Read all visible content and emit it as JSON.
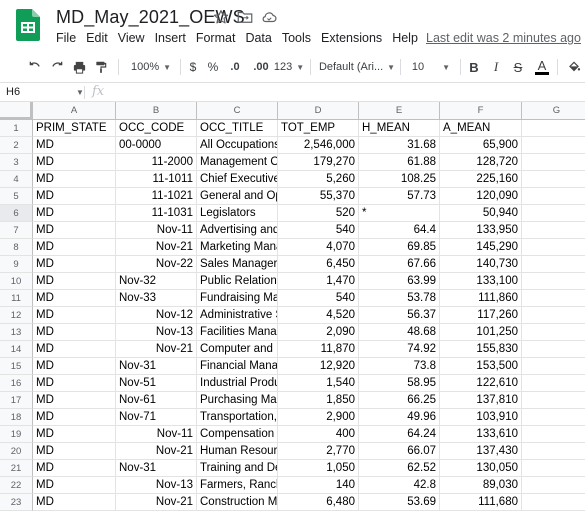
{
  "app": {
    "doc_title": "MD_May_2021_OEWS",
    "last_edit": "Last edit was 2 minutes ago",
    "brand_color": "#0f9d58"
  },
  "menu": [
    "File",
    "Edit",
    "View",
    "Insert",
    "Format",
    "Data",
    "Tools",
    "Extensions",
    "Help"
  ],
  "toolbar": {
    "zoom": "100%",
    "currency": "$",
    "percent": "%",
    "decrease_decimal": ".0",
    "increase_decimal": ".00",
    "more_formats": "123",
    "font": "Default (Ari...",
    "font_size": "10",
    "bold": "B",
    "italic": "I",
    "strike": "S",
    "text_color": "A",
    "text_color_value": "#000000"
  },
  "formula_bar": {
    "name_box": "H6",
    "fx": "fx",
    "value": ""
  },
  "sheet": {
    "columns": [
      "A",
      "B",
      "C",
      "D",
      "E",
      "F",
      "G"
    ],
    "selected_cell": "H6",
    "rows": [
      {
        "n": "1",
        "a": "PRIM_STATE",
        "b": "OCC_CODE",
        "c": "OCC_TITLE",
        "d": "TOT_EMP",
        "e": "H_MEAN",
        "f": "A_MEAN",
        "b_num": false,
        "e_num": false
      },
      {
        "n": "2",
        "a": "MD",
        "b": "00-0000",
        "c": "All Occupations",
        "d": "2,546,000",
        "e": "31.68",
        "f": "65,900",
        "b_num": false,
        "e_num": true
      },
      {
        "n": "3",
        "a": "MD",
        "b": "11-2000",
        "c": "Management Oc",
        "d": "179,270",
        "e": "61.88",
        "f": "128,720",
        "b_num": true,
        "e_num": true
      },
      {
        "n": "4",
        "a": "MD",
        "b": "11-1011",
        "c": "Chief Executives",
        "d": "5,260",
        "e": "108.25",
        "f": "225,160",
        "b_num": true,
        "e_num": true
      },
      {
        "n": "5",
        "a": "MD",
        "b": "11-1021",
        "c": "General and Ope",
        "d": "55,370",
        "e": "57.73",
        "f": "120,090",
        "b_num": true,
        "e_num": true
      },
      {
        "n": "6",
        "a": "MD",
        "b": "11-1031",
        "c": "Legislators",
        "d": "520",
        "e": "*",
        "f": "50,940",
        "b_num": true,
        "e_num": false
      },
      {
        "n": "7",
        "a": "MD",
        "b": "Nov-11",
        "c": "Advertising and I",
        "d": "540",
        "e": "64.4",
        "f": "133,950",
        "b_num": true,
        "e_num": true
      },
      {
        "n": "8",
        "a": "MD",
        "b": "Nov-21",
        "c": "Marketing Mana",
        "d": "4,070",
        "e": "69.85",
        "f": "145,290",
        "b_num": true,
        "e_num": true
      },
      {
        "n": "9",
        "a": "MD",
        "b": "Nov-22",
        "c": "Sales Managers",
        "d": "6,450",
        "e": "67.66",
        "f": "140,730",
        "b_num": true,
        "e_num": true
      },
      {
        "n": "10",
        "a": "MD",
        "b": "Nov-32",
        "c": "Public Relations",
        "d": "1,470",
        "e": "63.99",
        "f": "133,100",
        "b_num": false,
        "e_num": true
      },
      {
        "n": "11",
        "a": "MD",
        "b": "Nov-33",
        "c": "Fundraising Mar",
        "d": "540",
        "e": "53.78",
        "f": "111,860",
        "b_num": false,
        "e_num": true
      },
      {
        "n": "12",
        "a": "MD",
        "b": "Nov-12",
        "c": "Administrative S",
        "d": "4,520",
        "e": "56.37",
        "f": "117,260",
        "b_num": true,
        "e_num": true
      },
      {
        "n": "13",
        "a": "MD",
        "b": "Nov-13",
        "c": "Facilities Manag",
        "d": "2,090",
        "e": "48.68",
        "f": "101,250",
        "b_num": true,
        "e_num": true
      },
      {
        "n": "14",
        "a": "MD",
        "b": "Nov-21",
        "c": "Computer and Ir",
        "d": "11,870",
        "e": "74.92",
        "f": "155,830",
        "b_num": true,
        "e_num": true
      },
      {
        "n": "15",
        "a": "MD",
        "b": "Nov-31",
        "c": "Financial Manag",
        "d": "12,920",
        "e": "73.8",
        "f": "153,500",
        "b_num": false,
        "e_num": true
      },
      {
        "n": "16",
        "a": "MD",
        "b": "Nov-51",
        "c": "Industrial Produc",
        "d": "1,540",
        "e": "58.95",
        "f": "122,610",
        "b_num": false,
        "e_num": true
      },
      {
        "n": "17",
        "a": "MD",
        "b": "Nov-61",
        "c": "Purchasing Man",
        "d": "1,850",
        "e": "66.25",
        "f": "137,810",
        "b_num": false,
        "e_num": true
      },
      {
        "n": "18",
        "a": "MD",
        "b": "Nov-71",
        "c": "Transportation, S",
        "d": "2,900",
        "e": "49.96",
        "f": "103,910",
        "b_num": false,
        "e_num": true
      },
      {
        "n": "19",
        "a": "MD",
        "b": "Nov-11",
        "c": "Compensation a",
        "d": "400",
        "e": "64.24",
        "f": "133,610",
        "b_num": true,
        "e_num": true
      },
      {
        "n": "20",
        "a": "MD",
        "b": "Nov-21",
        "c": "Human Resourc",
        "d": "2,770",
        "e": "66.07",
        "f": "137,430",
        "b_num": true,
        "e_num": true
      },
      {
        "n": "21",
        "a": "MD",
        "b": "Nov-31",
        "c": "Training and Dev",
        "d": "1,050",
        "e": "62.52",
        "f": "130,050",
        "b_num": false,
        "e_num": true
      },
      {
        "n": "22",
        "a": "MD",
        "b": "Nov-13",
        "c": "Farmers, Ranche",
        "d": "140",
        "e": "42.8",
        "f": "89,030",
        "b_num": true,
        "e_num": true
      },
      {
        "n": "23",
        "a": "MD",
        "b": "Nov-21",
        "c": "Construction Ma",
        "d": "6,480",
        "e": "53.69",
        "f": "111,680",
        "b_num": true,
        "e_num": true
      }
    ]
  }
}
